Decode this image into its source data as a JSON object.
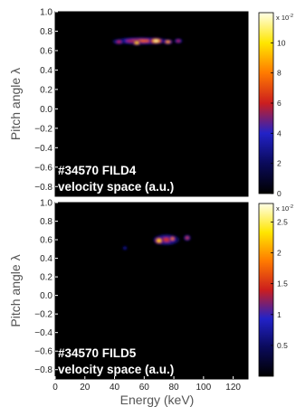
{
  "chart_data": [
    {
      "type": "heatmap",
      "title": "",
      "annotation_lines": [
        "#34570 FILD4",
        "velocity space (a.u.)"
      ],
      "xlabel": "Energy (keV)",
      "ylabel": "Pitch angle λ",
      "xlim": [
        0,
        130
      ],
      "ylim": [
        -0.9,
        1.0
      ],
      "yticks": [
        "1.0",
        "0.8",
        "0.6",
        "0.4",
        "0.2",
        "0.0",
        "−0.2",
        "−0.4",
        "−0.6",
        "−0.8"
      ],
      "colorbar": {
        "range": [
          0,
          12
        ],
        "ticks": [
          "10",
          "8",
          "6",
          "4",
          "2",
          "0"
        ],
        "multiplier": "x 10",
        "exponent": "-2",
        "colormap": [
          "#000000",
          "#0a0a5a",
          "#2222c8",
          "#cc1e1e",
          "#ff7a00",
          "#ffe600",
          "#ffffe8"
        ]
      },
      "blobs": [
        {
          "energy": 58,
          "pitch": 0.7,
          "energy_width": 24,
          "pitch_width": 0.028,
          "peak": 7.5
        },
        {
          "energy": 43,
          "pitch": 0.69,
          "energy_width": 5,
          "pitch_width": 0.02,
          "peak": 6
        },
        {
          "energy": 55,
          "pitch": 0.68,
          "energy_width": 4,
          "pitch_width": 0.02,
          "peak": 10
        },
        {
          "energy": 68,
          "pitch": 0.7,
          "energy_width": 6,
          "pitch_width": 0.025,
          "peak": 11.5
        },
        {
          "energy": 76,
          "pitch": 0.69,
          "energy_width": 4,
          "pitch_width": 0.02,
          "peak": 9
        },
        {
          "energy": 83,
          "pitch": 0.7,
          "energy_width": 3.5,
          "pitch_width": 0.02,
          "peak": 6
        }
      ]
    },
    {
      "type": "heatmap",
      "title": "",
      "annotation_lines": [
        "#34570 FILD5",
        "velocity space (a.u.)"
      ],
      "xlabel": "Energy (keV)",
      "ylabel": "Pitch angle λ",
      "xlim": [
        0,
        130
      ],
      "ylim": [
        -0.9,
        1.0
      ],
      "xticks": [
        "0",
        "20",
        "40",
        "60",
        "80",
        "100",
        "120"
      ],
      "yticks": [
        "1.0",
        "0.8",
        "0.6",
        "0.4",
        "0.2",
        "0.0",
        "−0.2",
        "−0.4",
        "−0.6",
        "−0.8"
      ],
      "colorbar": {
        "range": [
          0,
          2.8
        ],
        "ticks": [
          "2.5",
          "2",
          "1.5",
          "1",
          "0.5"
        ],
        "multiplier": "x 10",
        "exponent": "-2",
        "colormap": [
          "#000000",
          "#0a0a5a",
          "#2222c8",
          "#cc1e1e",
          "#ff7a00",
          "#ffe600",
          "#ffffe8"
        ]
      },
      "blobs": [
        {
          "energy": 75,
          "pitch": 0.6,
          "energy_width": 11,
          "pitch_width": 0.045,
          "peak": 1.5
        },
        {
          "energy": 70,
          "pitch": 0.59,
          "energy_width": 4,
          "pitch_width": 0.03,
          "peak": 2.4
        },
        {
          "energy": 79,
          "pitch": 0.61,
          "energy_width": 3,
          "pitch_width": 0.025,
          "peak": 2.0
        },
        {
          "energy": 89,
          "pitch": 0.62,
          "energy_width": 3,
          "pitch_width": 0.025,
          "peak": 1.6
        },
        {
          "energy": 47,
          "pitch": 0.51,
          "energy_width": 2,
          "pitch_width": 0.018,
          "peak": 0.8
        }
      ]
    }
  ]
}
